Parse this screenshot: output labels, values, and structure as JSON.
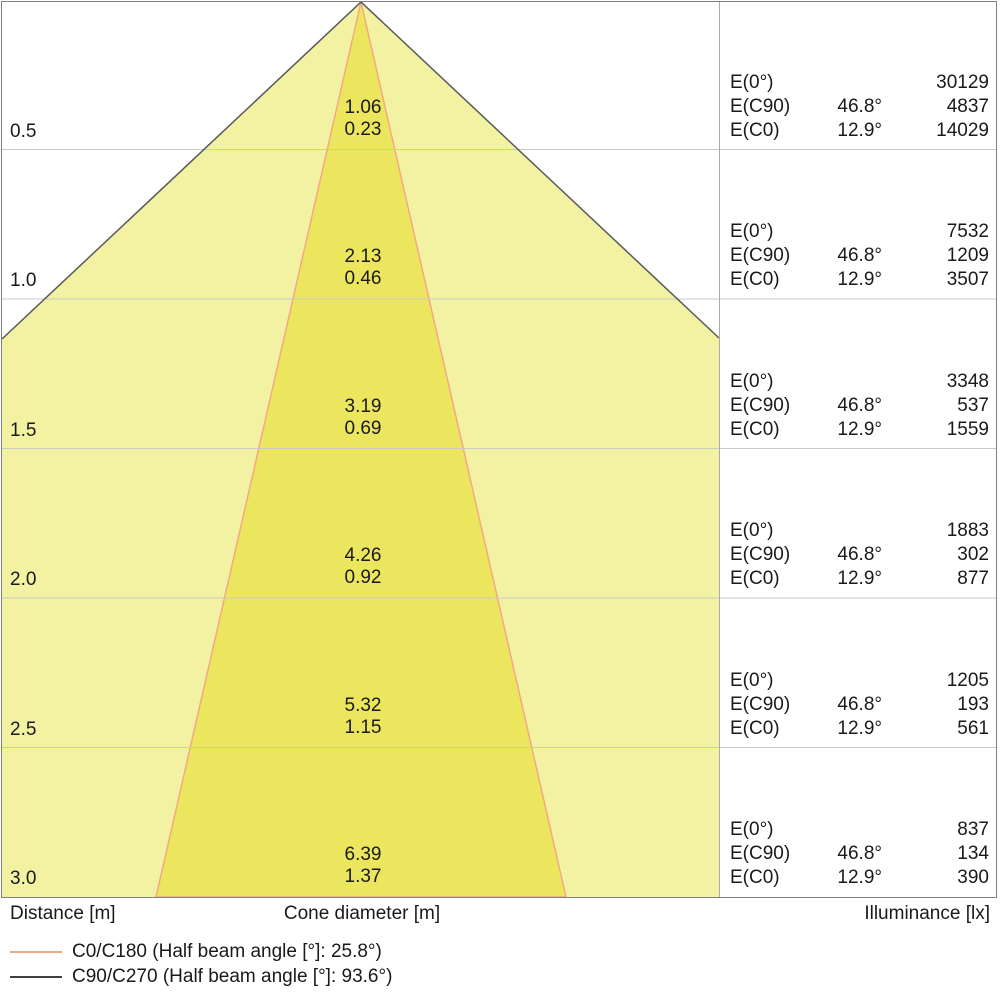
{
  "colors": {
    "outer_cone_fill": "#f3f2a3",
    "inner_cone_fill": "#ece65f",
    "outer_cone_stroke": "#58595b",
    "inner_cone_stroke": "#f3a983",
    "gridline": "#c9c9c9",
    "divider": "#aaaaaa",
    "frame": "#7f7f7f"
  },
  "chart_data": {
    "type": "cone-diagram",
    "distance_axis_label": "Distance [m]",
    "cone_axis_label": "Cone diameter [m]",
    "illuminance_axis_label": "Illuminance [lx]",
    "illuminance_row_labels": [
      "E(0°)",
      "E(C90)",
      "E(C0)"
    ],
    "c90_half_beam_angle_deg": 46.8,
    "c0_half_beam_angle_deg": 12.9,
    "distances_m": [
      0.5,
      1.0,
      1.5,
      2.0,
      2.5,
      3.0
    ],
    "rows": [
      {
        "distance_m": "0.5",
        "cone_diameter_c90_m": "1.06",
        "cone_diameter_c0_m": "0.23",
        "E0_lx": "30129",
        "EC90_angle": "46.8°",
        "EC90_lx": "4837",
        "EC0_angle": "12.9°",
        "EC0_lx": "14029"
      },
      {
        "distance_m": "1.0",
        "cone_diameter_c90_m": "2.13",
        "cone_diameter_c0_m": "0.46",
        "E0_lx": "7532",
        "EC90_angle": "46.8°",
        "EC90_lx": "1209",
        "EC0_angle": "12.9°",
        "EC0_lx": "3507"
      },
      {
        "distance_m": "1.5",
        "cone_diameter_c90_m": "3.19",
        "cone_diameter_c0_m": "0.69",
        "E0_lx": "3348",
        "EC90_angle": "46.8°",
        "EC90_lx": "537",
        "EC0_angle": "12.9°",
        "EC0_lx": "1559"
      },
      {
        "distance_m": "2.0",
        "cone_diameter_c90_m": "4.26",
        "cone_diameter_c0_m": "0.92",
        "E0_lx": "1883",
        "EC90_angle": "46.8°",
        "EC90_lx": "302",
        "EC0_angle": "12.9°",
        "EC0_lx": "877"
      },
      {
        "distance_m": "2.5",
        "cone_diameter_c90_m": "5.32",
        "cone_diameter_c0_m": "1.15",
        "E0_lx": "1205",
        "EC90_angle": "46.8°",
        "EC90_lx": "193",
        "EC0_angle": "12.9°",
        "EC0_lx": "561"
      },
      {
        "distance_m": "3.0",
        "cone_diameter_c90_m": "6.39",
        "cone_diameter_c0_m": "1.37",
        "E0_lx": "837",
        "EC90_angle": "46.8°",
        "EC90_lx": "134",
        "EC0_angle": "12.9°",
        "EC0_lx": "390"
      }
    ],
    "legend": [
      {
        "label": "C0/C180 (Half beam angle [°]: 25.8°)",
        "color": "#f3a983"
      },
      {
        "label": "C90/C270 (Half beam angle [°]: 93.6°)",
        "color": "#414141"
      }
    ]
  }
}
